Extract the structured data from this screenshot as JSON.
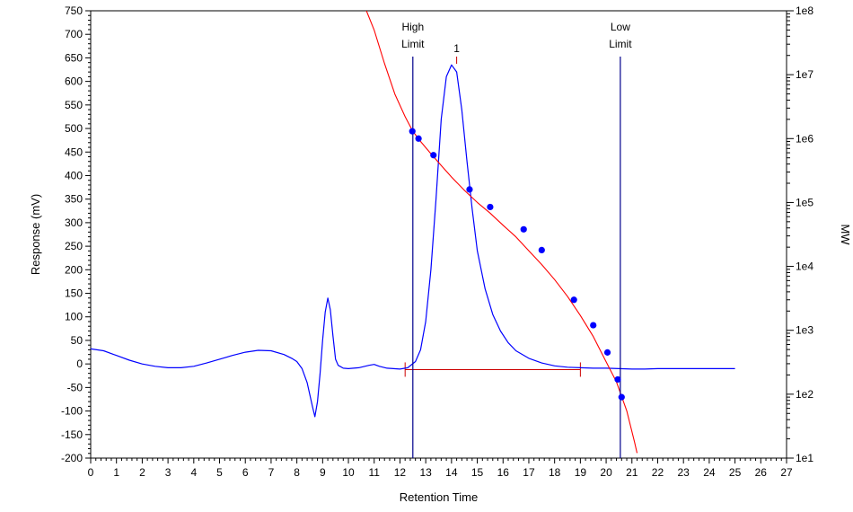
{
  "chart_data": {
    "type": "line",
    "xlabel": "Retention Time",
    "ylabel": "Response (mV)",
    "y2label": "MW",
    "xlim": [
      0,
      27
    ],
    "ylim": [
      -200,
      750
    ],
    "y2lim": [
      10,
      100000000
    ],
    "y2scale": "log",
    "x_ticks": [
      "0",
      "1",
      "2",
      "3",
      "4",
      "5",
      "6",
      "7",
      "8",
      "9",
      "10",
      "11",
      "12",
      "13",
      "14",
      "15",
      "16",
      "17",
      "18",
      "19",
      "20",
      "21",
      "22",
      "23",
      "24",
      "25",
      "26",
      "27"
    ],
    "y_ticks": [
      "750",
      "700",
      "650",
      "600",
      "550",
      "500",
      "450",
      "400",
      "350",
      "300",
      "250",
      "200",
      "150",
      "100",
      "50",
      "0",
      "-50",
      "-100",
      "-150",
      "-200"
    ],
    "y2_ticks": [
      "1e8",
      "1e7",
      "1e6",
      "1e5",
      "1e4",
      "1e3",
      "1e2",
      "1e1"
    ],
    "colors": {
      "chromatogram": "#0000ff",
      "calibration": "#ff0000",
      "limits": "#00008b",
      "points": "#0000ff",
      "baseline": "#cc0000"
    },
    "series": [
      {
        "role": "chromatogram",
        "x": [
          0,
          0.5,
          1,
          1.5,
          2,
          2.5,
          3,
          3.5,
          4,
          4.5,
          5,
          5.5,
          6,
          6.5,
          7,
          7.5,
          7.8,
          8,
          8.2,
          8.4,
          8.6,
          8.7,
          8.8,
          8.9,
          9.0,
          9.1,
          9.2,
          9.3,
          9.4,
          9.5,
          9.6,
          9.8,
          10,
          10.4,
          10.8,
          11,
          11.2,
          11.5,
          12,
          12.3,
          12.6,
          12.8,
          13.0,
          13.2,
          13.4,
          13.6,
          13.8,
          14.0,
          14.2,
          14.4,
          14.6,
          14.8,
          15.0,
          15.3,
          15.6,
          15.9,
          16.2,
          16.5,
          17,
          17.5,
          18,
          18.5,
          19,
          19.5,
          20,
          20.5,
          21,
          21.5,
          22,
          22.5,
          23,
          23.5,
          24,
          24.5,
          25
        ],
        "y": [
          32,
          28,
          18,
          8,
          0,
          -5,
          -8,
          -8,
          -5,
          2,
          10,
          18,
          25,
          29,
          28,
          20,
          12,
          5,
          -10,
          -40,
          -90,
          -112,
          -80,
          -20,
          50,
          110,
          140,
          115,
          60,
          10,
          -3,
          -9,
          -10,
          -8,
          -3,
          -1,
          -5,
          -9,
          -11,
          -8,
          5,
          30,
          90,
          200,
          350,
          520,
          610,
          635,
          620,
          540,
          430,
          330,
          240,
          160,
          105,
          70,
          45,
          28,
          12,
          2,
          -4,
          -7,
          -8,
          -9,
          -9,
          -10,
          -11,
          -11,
          -10,
          -10,
          -10,
          -10,
          -10,
          -10,
          -10
        ]
      },
      {
        "role": "calibration-curve",
        "x": [
          10.7,
          11.0,
          11.4,
          11.8,
          12.2,
          12.5,
          12.8,
          13.2,
          13.6,
          14.0,
          14.5,
          15.0,
          15.5,
          16.0,
          16.5,
          17.0,
          17.5,
          18.0,
          18.5,
          19.0,
          19.5,
          20.0,
          20.4,
          20.8,
          21.1,
          21.2
        ],
        "y": [
          100000000,
          50000000,
          15000000,
          5000000,
          2200000,
          1300000,
          900000,
          580000,
          380000,
          250000,
          155000,
          100000,
          68000,
          44000,
          29000,
          17500,
          10700,
          6200,
          3400,
          1700,
          800,
          320,
          155,
          55,
          18,
          12
        ]
      },
      {
        "role": "calibration-points",
        "x": [
          12.48,
          12.72,
          13.3,
          14.7,
          15.5,
          16.8,
          17.5,
          18.75,
          19.5,
          20.05,
          20.45,
          20.6
        ],
        "y": [
          1300000,
          1000000,
          550000,
          160000,
          85000,
          38000,
          18000,
          3000,
          1200,
          450,
          170,
          90
        ]
      }
    ],
    "annotations": {
      "high_limit": {
        "x": 12.5,
        "label_line1": "High",
        "label_line2": "Limit"
      },
      "low_limit": {
        "x": 20.55,
        "label_line1": "Low",
        "label_line2": "Limit"
      },
      "peak_label": {
        "x": 14.2,
        "text": "1"
      },
      "integration_baseline": {
        "x_start": 12.2,
        "x_end": 19.0,
        "y": -12
      }
    },
    "grid": false,
    "legend": "none"
  }
}
